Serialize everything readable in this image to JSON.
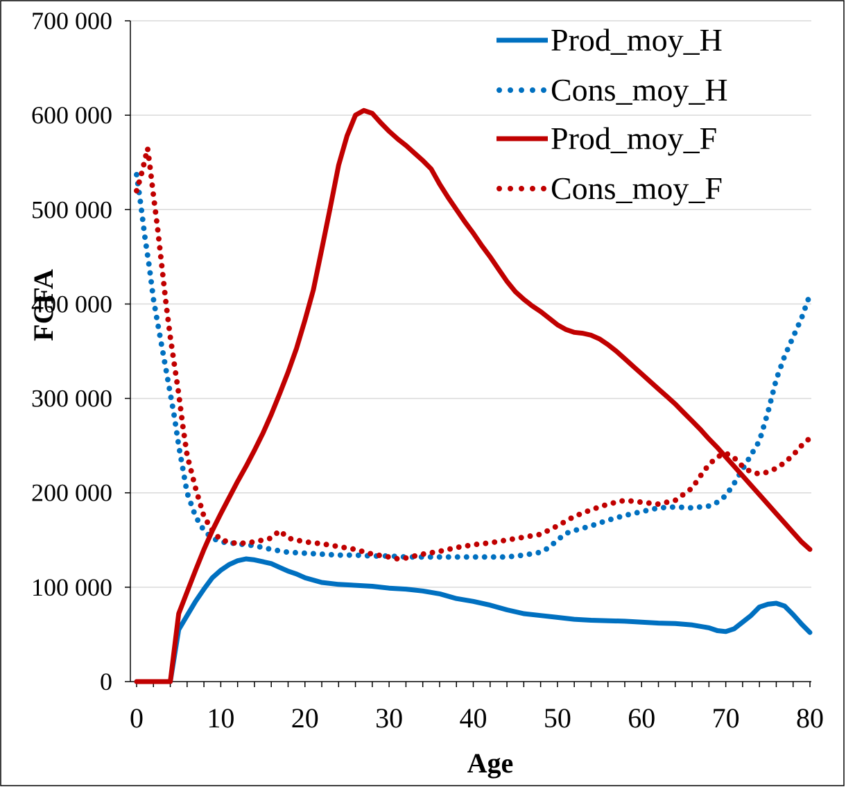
{
  "chart_data": {
    "type": "line",
    "xlabel": "Age",
    "ylabel": "FCFA",
    "xlim": [
      0,
      80
    ],
    "ylim": [
      0,
      700000
    ],
    "xticks": [
      0,
      10,
      20,
      30,
      40,
      50,
      60,
      70,
      80
    ],
    "yticks": [
      0,
      100000,
      200000,
      300000,
      400000,
      500000,
      600000,
      700000
    ],
    "xtick_labels": [
      "0",
      "10",
      "20",
      "30",
      "40",
      "50",
      "60",
      "70",
      "80"
    ],
    "ytick_labels": [
      "0",
      "100 000",
      "200 000",
      "300 000",
      "400 000",
      "500 000",
      "600 000",
      "700 000"
    ],
    "grid": "horizontal",
    "legend_position": "top-right",
    "series": [
      {
        "name": "Prod_moy_H",
        "style": "solid",
        "color": "#0070C0",
        "points": [
          [
            0,
            0
          ],
          [
            1,
            0
          ],
          [
            2,
            0
          ],
          [
            3,
            0
          ],
          [
            4,
            0
          ],
          [
            5,
            55000
          ],
          [
            6,
            70000
          ],
          [
            7,
            85000
          ],
          [
            8,
            98000
          ],
          [
            9,
            110000
          ],
          [
            10,
            118000
          ],
          [
            11,
            124000
          ],
          [
            12,
            128000
          ],
          [
            13,
            130000
          ],
          [
            14,
            129000
          ],
          [
            15,
            127000
          ],
          [
            16,
            125000
          ],
          [
            17,
            121000
          ],
          [
            18,
            117000
          ],
          [
            19,
            114000
          ],
          [
            20,
            110000
          ],
          [
            22,
            105000
          ],
          [
            24,
            103000
          ],
          [
            26,
            102000
          ],
          [
            28,
            101000
          ],
          [
            30,
            99000
          ],
          [
            32,
            98000
          ],
          [
            34,
            96000
          ],
          [
            36,
            93000
          ],
          [
            38,
            88000
          ],
          [
            40,
            85000
          ],
          [
            42,
            81000
          ],
          [
            44,
            76000
          ],
          [
            46,
            72000
          ],
          [
            48,
            70000
          ],
          [
            50,
            68000
          ],
          [
            52,
            66000
          ],
          [
            54,
            65000
          ],
          [
            56,
            64500
          ],
          [
            58,
            64000
          ],
          [
            60,
            63000
          ],
          [
            62,
            62000
          ],
          [
            64,
            61500
          ],
          [
            66,
            60000
          ],
          [
            68,
            57000
          ],
          [
            69,
            54000
          ],
          [
            70,
            53000
          ],
          [
            71,
            56000
          ],
          [
            72,
            63000
          ],
          [
            73,
            70000
          ],
          [
            74,
            79000
          ],
          [
            75,
            82000
          ],
          [
            76,
            83000
          ],
          [
            77,
            80000
          ],
          [
            78,
            71000
          ],
          [
            79,
            61000
          ],
          [
            80,
            52000
          ]
        ]
      },
      {
        "name": "Cons_moy_H",
        "style": "dotted",
        "color": "#0070C0",
        "points": [
          [
            0,
            537000
          ],
          [
            0.5,
            505000
          ],
          [
            1,
            470000
          ],
          [
            1.5,
            440000
          ],
          [
            2,
            405000
          ],
          [
            2.5,
            380000
          ],
          [
            3,
            355000
          ],
          [
            3.5,
            330000
          ],
          [
            4,
            305000
          ],
          [
            4.5,
            280000
          ],
          [
            5,
            250000
          ],
          [
            5.5,
            225000
          ],
          [
            6,
            200000
          ],
          [
            7,
            175000
          ],
          [
            8,
            160000
          ],
          [
            9,
            152000
          ],
          [
            10,
            148000
          ],
          [
            12,
            146000
          ],
          [
            14,
            144000
          ],
          [
            16,
            140000
          ],
          [
            18,
            137000
          ],
          [
            20,
            136000
          ],
          [
            22,
            135000
          ],
          [
            24,
            134000
          ],
          [
            26,
            134000
          ],
          [
            28,
            133000
          ],
          [
            30,
            133000
          ],
          [
            32,
            132000
          ],
          [
            34,
            132000
          ],
          [
            36,
            132000
          ],
          [
            38,
            132000
          ],
          [
            40,
            132000
          ],
          [
            42,
            132000
          ],
          [
            44,
            132000
          ],
          [
            46,
            134000
          ],
          [
            48,
            137000
          ],
          [
            49,
            142000
          ],
          [
            50,
            150000
          ],
          [
            51,
            157000
          ],
          [
            52,
            160000
          ],
          [
            54,
            165000
          ],
          [
            56,
            171000
          ],
          [
            58,
            176000
          ],
          [
            60,
            180000
          ],
          [
            62,
            184000
          ],
          [
            64,
            185000
          ],
          [
            66,
            184000
          ],
          [
            68,
            186000
          ],
          [
            69,
            190000
          ],
          [
            70,
            197000
          ],
          [
            71,
            210000
          ],
          [
            72,
            225000
          ],
          [
            73,
            240000
          ],
          [
            74,
            255000
          ],
          [
            75,
            285000
          ],
          [
            76,
            320000
          ],
          [
            77,
            345000
          ],
          [
            78,
            365000
          ],
          [
            79,
            385000
          ],
          [
            80,
            410000
          ]
        ]
      },
      {
        "name": "Prod_moy_F",
        "style": "solid",
        "color": "#C00000",
        "points": [
          [
            0,
            0
          ],
          [
            1,
            0
          ],
          [
            2,
            0
          ],
          [
            3,
            0
          ],
          [
            4,
            0
          ],
          [
            5,
            72000
          ],
          [
            6,
            95000
          ],
          [
            7,
            118000
          ],
          [
            8,
            140000
          ],
          [
            9,
            160000
          ],
          [
            10,
            178000
          ],
          [
            11,
            195000
          ],
          [
            12,
            212000
          ],
          [
            13,
            228000
          ],
          [
            14,
            245000
          ],
          [
            15,
            263000
          ],
          [
            16,
            283000
          ],
          [
            17,
            305000
          ],
          [
            18,
            328000
          ],
          [
            19,
            353000
          ],
          [
            20,
            383000
          ],
          [
            21,
            415000
          ],
          [
            22,
            458000
          ],
          [
            23,
            502000
          ],
          [
            24,
            547000
          ],
          [
            25,
            578000
          ],
          [
            26,
            600000
          ],
          [
            27,
            605000
          ],
          [
            28,
            602000
          ],
          [
            29,
            592000
          ],
          [
            30,
            583000
          ],
          [
            31,
            575000
          ],
          [
            32,
            568000
          ],
          [
            33,
            560000
          ],
          [
            34,
            552000
          ],
          [
            35,
            543000
          ],
          [
            36,
            527000
          ],
          [
            37,
            513000
          ],
          [
            38,
            500000
          ],
          [
            39,
            487000
          ],
          [
            40,
            475000
          ],
          [
            41,
            462000
          ],
          [
            42,
            450000
          ],
          [
            43,
            437000
          ],
          [
            44,
            424000
          ],
          [
            45,
            413000
          ],
          [
            46,
            405000
          ],
          [
            47,
            398000
          ],
          [
            48,
            392000
          ],
          [
            49,
            385000
          ],
          [
            50,
            378000
          ],
          [
            51,
            373000
          ],
          [
            52,
            370000
          ],
          [
            53,
            369000
          ],
          [
            54,
            367000
          ],
          [
            55,
            363000
          ],
          [
            56,
            357000
          ],
          [
            57,
            350000
          ],
          [
            58,
            342000
          ],
          [
            59,
            334000
          ],
          [
            60,
            326000
          ],
          [
            61,
            318000
          ],
          [
            62,
            310000
          ],
          [
            63,
            302000
          ],
          [
            64,
            294000
          ],
          [
            65,
            285000
          ],
          [
            66,
            276000
          ],
          [
            67,
            267000
          ],
          [
            68,
            257000
          ],
          [
            69,
            248000
          ],
          [
            70,
            238000
          ],
          [
            71,
            228000
          ],
          [
            72,
            218000
          ],
          [
            73,
            208000
          ],
          [
            74,
            198000
          ],
          [
            75,
            188000
          ],
          [
            76,
            178000
          ],
          [
            77,
            168000
          ],
          [
            78,
            158000
          ],
          [
            79,
            148000
          ],
          [
            80,
            140000
          ]
        ]
      },
      {
        "name": "Cons_moy_F",
        "style": "dotted",
        "color": "#C00000",
        "points": [
          [
            0,
            520000
          ],
          [
            0.5,
            535000
          ],
          [
            1,
            553000
          ],
          [
            1.3,
            565000
          ],
          [
            1.6,
            545000
          ],
          [
            2,
            515000
          ],
          [
            2.5,
            480000
          ],
          [
            3,
            440000
          ],
          [
            3.5,
            400000
          ],
          [
            4,
            365000
          ],
          [
            4.5,
            335000
          ],
          [
            5,
            305000
          ],
          [
            5.5,
            270000
          ],
          [
            6,
            240000
          ],
          [
            7,
            205000
          ],
          [
            8,
            175000
          ],
          [
            9,
            160000
          ],
          [
            10,
            150000
          ],
          [
            12,
            146000
          ],
          [
            14,
            148000
          ],
          [
            16,
            152000
          ],
          [
            17,
            160000
          ],
          [
            18,
            152000
          ],
          [
            20,
            148000
          ],
          [
            22,
            146000
          ],
          [
            24,
            143000
          ],
          [
            26,
            140000
          ],
          [
            28,
            135000
          ],
          [
            30,
            132000
          ],
          [
            31,
            130000
          ],
          [
            32,
            131000
          ],
          [
            34,
            135000
          ],
          [
            36,
            138000
          ],
          [
            38,
            142000
          ],
          [
            40,
            145000
          ],
          [
            42,
            147000
          ],
          [
            44,
            150000
          ],
          [
            46,
            153000
          ],
          [
            48,
            156000
          ],
          [
            50,
            165000
          ],
          [
            52,
            175000
          ],
          [
            54,
            182000
          ],
          [
            56,
            188000
          ],
          [
            58,
            192000
          ],
          [
            60,
            190000
          ],
          [
            62,
            188000
          ],
          [
            64,
            192000
          ],
          [
            66,
            205000
          ],
          [
            67,
            218000
          ],
          [
            68,
            230000
          ],
          [
            69,
            238000
          ],
          [
            70,
            242000
          ],
          [
            71,
            237000
          ],
          [
            72,
            228000
          ],
          [
            73,
            222000
          ],
          [
            74,
            220000
          ],
          [
            75,
            222000
          ],
          [
            76,
            226000
          ],
          [
            77,
            232000
          ],
          [
            78,
            240000
          ],
          [
            79,
            250000
          ],
          [
            80,
            258000
          ]
        ]
      }
    ]
  }
}
